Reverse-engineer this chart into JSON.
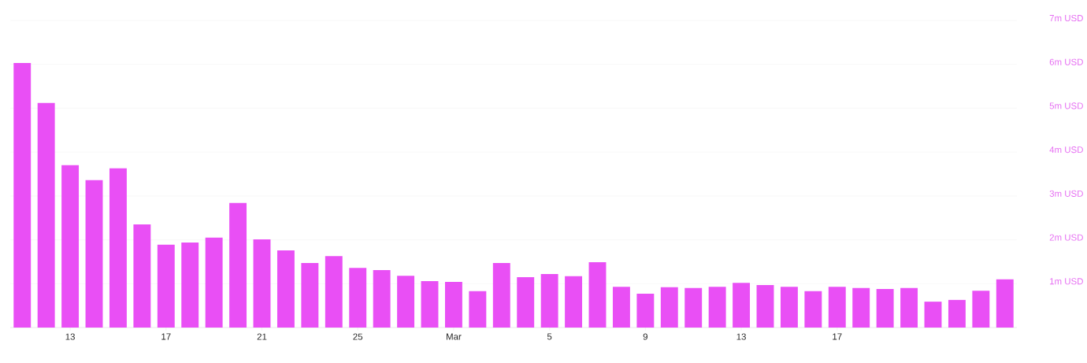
{
  "chart_data": {
    "type": "bar",
    "categories": [
      null,
      null,
      "13",
      null,
      null,
      null,
      "17",
      null,
      null,
      null,
      "21",
      null,
      null,
      null,
      "25",
      null,
      null,
      null,
      "Mar",
      null,
      null,
      null,
      "5",
      null,
      null,
      null,
      "9",
      null,
      null,
      null,
      "13",
      null,
      null,
      null,
      "17",
      null,
      null,
      null,
      null,
      null,
      null,
      null
    ],
    "values": [
      6.03,
      5.12,
      3.7,
      3.36,
      3.63,
      2.35,
      1.89,
      1.94,
      2.05,
      2.84,
      2.01,
      1.76,
      1.47,
      1.63,
      1.36,
      1.31,
      1.18,
      1.06,
      1.04,
      0.83,
      1.47,
      1.15,
      1.22,
      1.17,
      1.49,
      0.93,
      0.77,
      0.92,
      0.9,
      0.93,
      1.02,
      0.97,
      0.93,
      0.83,
      0.93,
      0.9,
      0.88,
      0.9,
      0.59,
      0.63,
      0.84,
      1.1
    ],
    "color": "#e94ff5",
    "ylim": [
      0,
      7
    ],
    "yticks": [
      {
        "value": 1,
        "label": "1m USD"
      },
      {
        "value": 2,
        "label": "2m USD"
      },
      {
        "value": 3,
        "label": "3m USD"
      },
      {
        "value": 4,
        "label": "4m USD"
      },
      {
        "value": 5,
        "label": "5m USD"
      },
      {
        "value": 6,
        "label": "6m USD"
      },
      {
        "value": 7,
        "label": "7m USD"
      }
    ],
    "grid": "y"
  }
}
